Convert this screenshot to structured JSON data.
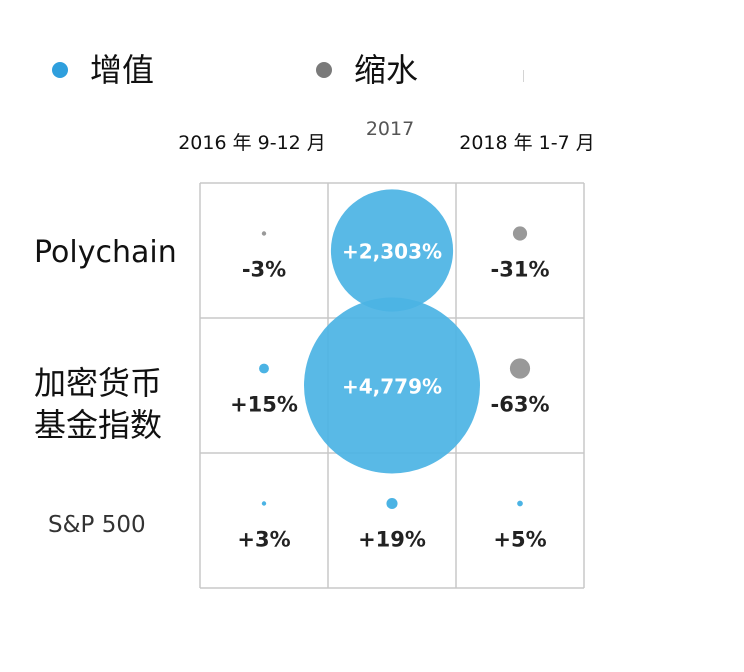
{
  "legend": {
    "gain_label": "增值",
    "loss_label": "缩水",
    "gain_color": "#2f9fdd",
    "loss_color": "#7a7a7a"
  },
  "chart_data": {
    "type": "bubble-grid",
    "columns": [
      "2016 年 9-12 月",
      "2017",
      "2018 年 1-7 月"
    ],
    "rows": [
      "Polychain",
      "加密货币\n基金指数",
      "S&P 500"
    ],
    "values": [
      [
        -3,
        2303,
        -31
      ],
      [
        15,
        4779,
        -63
      ],
      [
        3,
        19,
        5
      ]
    ],
    "labels": [
      [
        "-3%",
        "+2,303%",
        "-31%"
      ],
      [
        "+15%",
        "+4,779%",
        "-63%"
      ],
      [
        "+3%",
        "+19%",
        "+5%"
      ]
    ],
    "gain_color": "#4bb3e4",
    "loss_color": "#999999",
    "grid_color": "#c8c8c8"
  }
}
